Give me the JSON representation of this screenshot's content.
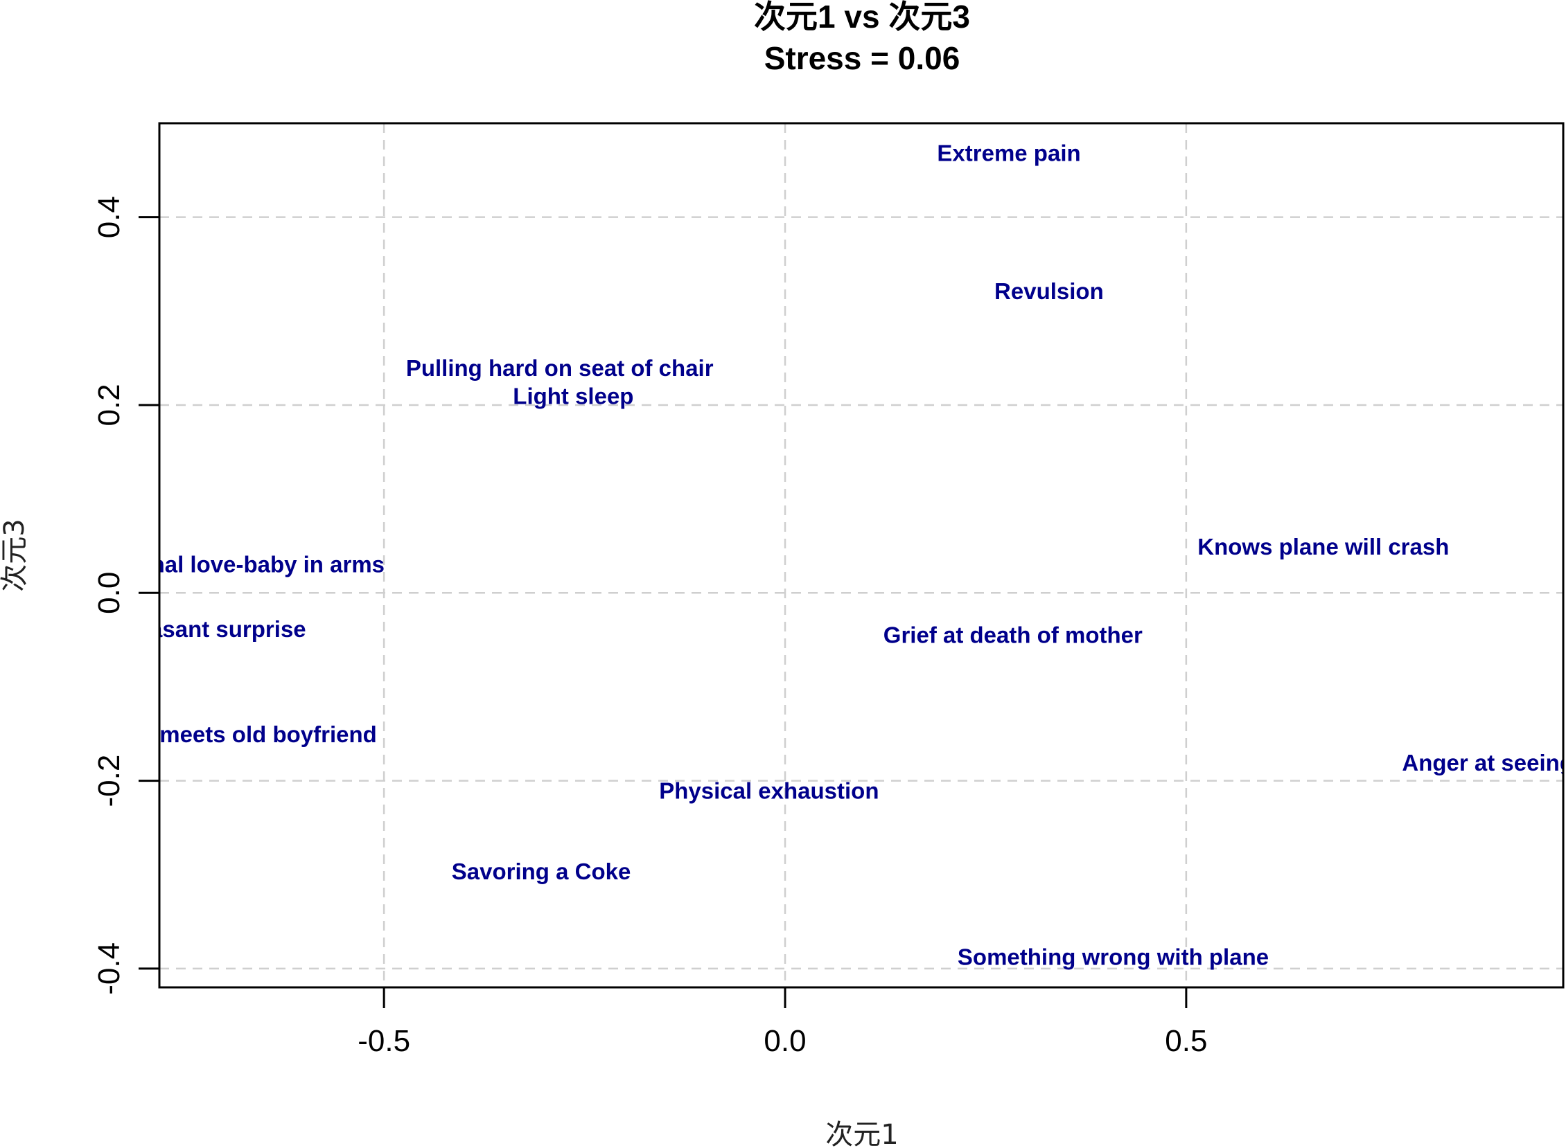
{
  "chart_data": {
    "type": "scatter",
    "title": "次元1 vs 次元3",
    "subtitle": "Stress = 0.06",
    "xlabel": "次元1",
    "ylabel": "次元3",
    "xlim": [
      -0.78,
      0.97
    ],
    "ylim": [
      -0.42,
      0.5
    ],
    "xticks": [
      -0.5,
      0.0,
      0.5
    ],
    "xtick_labels": [
      "-0.5",
      "0.0",
      "0.5"
    ],
    "yticks": [
      -0.4,
      -0.2,
      0.0,
      0.2,
      0.4
    ],
    "ytick_labels": [
      "-0.4",
      "-0.2",
      "0.0",
      "0.2",
      "0.4"
    ],
    "grid": true,
    "label_color": "#00008b",
    "points": [
      {
        "label": "Extreme pain",
        "x": 0.279,
        "y": 0.468
      },
      {
        "label": "Revulsion",
        "x": 0.329,
        "y": 0.321
      },
      {
        "label": "Pulling hard on seat of chair",
        "x": -0.281,
        "y": 0.239
      },
      {
        "label": "Light sleep",
        "x": -0.264,
        "y": 0.209
      },
      {
        "label": "Knows plane will crash",
        "x": 0.671,
        "y": 0.049
      },
      {
        "label": "Maternal love-baby in arms",
        "x": -0.683,
        "y": 0.03
      },
      {
        "label": "Pleasant surprise",
        "x": -0.716,
        "y": -0.039
      },
      {
        "label": "Grief at death of mother",
        "x": 0.284,
        "y": -0.045
      },
      {
        "label": "Unexpectedly meets old boyfriend",
        "x": -0.741,
        "y": -0.151
      },
      {
        "label": "Anger at seeing dog beaten",
        "x": 0.956,
        "y": -0.181
      },
      {
        "label": "Physical exhaustion",
        "x": -0.02,
        "y": -0.211
      },
      {
        "label": "Savoring a Coke",
        "x": -0.304,
        "y": -0.297
      },
      {
        "label": "Something wrong with plane",
        "x": 0.409,
        "y": -0.388
      }
    ]
  }
}
